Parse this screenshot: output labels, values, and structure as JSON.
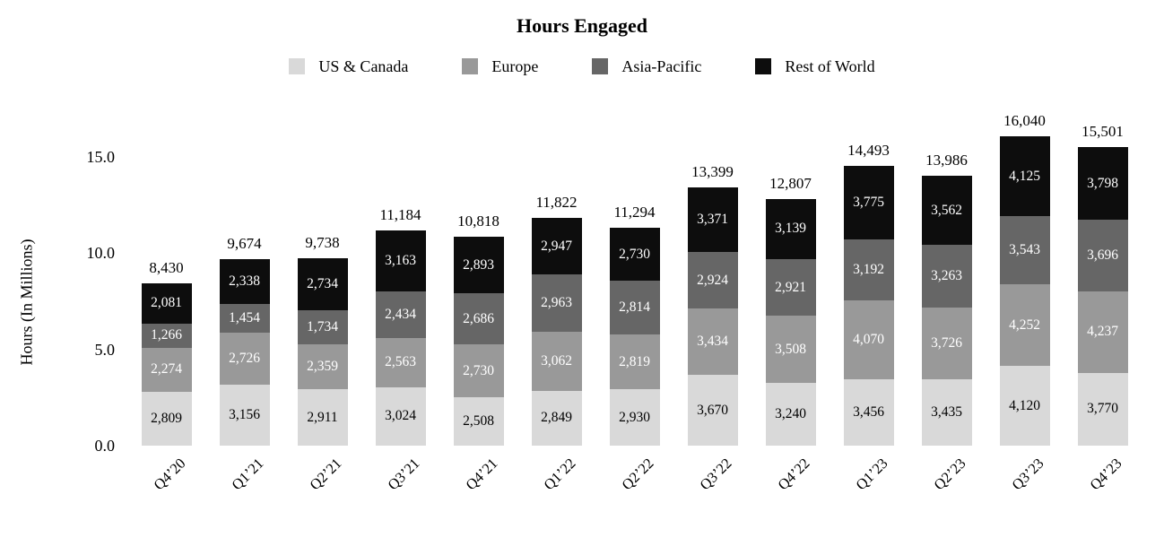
{
  "title": "Hours Engaged",
  "legend": {
    "items": [
      {
        "label": "US & Canada",
        "color": "#d9d9d9"
      },
      {
        "label": "Europe",
        "color": "#999999"
      },
      {
        "label": "Asia-Pacific",
        "color": "#666666"
      },
      {
        "label": "Rest of World",
        "color": "#0d0d0d"
      }
    ]
  },
  "chart_data": {
    "type": "bar",
    "stacked": true,
    "title": "Hours Engaged",
    "xlabel": "",
    "ylabel": "Hours (In Millions)",
    "grid": false,
    "legend_position": "top",
    "ylim": [
      0,
      16800
    ],
    "categories": [
      "Q4’20",
      "Q1’21",
      "Q2’21",
      "Q3’21",
      "Q4’21",
      "Q1’22",
      "Q2’22",
      "Q3’22",
      "Q4’22",
      "Q1’23",
      "Q2’23",
      "Q3’23",
      "Q4’23"
    ],
    "series": [
      {
        "name": "US & Canada",
        "color": "#d9d9d9",
        "label_color": "#000000",
        "values": [
          2809,
          3156,
          2911,
          3024,
          2508,
          2849,
          2930,
          3670,
          3240,
          3456,
          3435,
          4120,
          3770
        ]
      },
      {
        "name": "Europe",
        "color": "#999999",
        "label_color": "#ffffff",
        "values": [
          2274,
          2726,
          2359,
          2563,
          2730,
          3062,
          2819,
          3434,
          3508,
          4070,
          3726,
          4252,
          4237
        ]
      },
      {
        "name": "Asia-Pacific",
        "color": "#666666",
        "label_color": "#ffffff",
        "values": [
          1266,
          1454,
          1734,
          2434,
          2686,
          2963,
          2814,
          2924,
          2921,
          3192,
          3263,
          3543,
          3696
        ]
      },
      {
        "name": "Rest of World",
        "color": "#0d0d0d",
        "label_color": "#ffffff",
        "values": [
          2081,
          2338,
          2734,
          3163,
          2893,
          2947,
          2730,
          3371,
          3139,
          3775,
          3562,
          4125,
          3798
        ]
      }
    ],
    "totals": [
      8430,
      9674,
      9738,
      11184,
      10818,
      11822,
      11294,
      13399,
      12807,
      14493,
      13986,
      16040,
      15501
    ],
    "y_ticks": [
      {
        "label": "0.0",
        "value": 0
      },
      {
        "label": "5.0",
        "value": 5000
      },
      {
        "label": "10.0",
        "value": 10000
      },
      {
        "label": "15.0",
        "value": 15000
      }
    ]
  }
}
